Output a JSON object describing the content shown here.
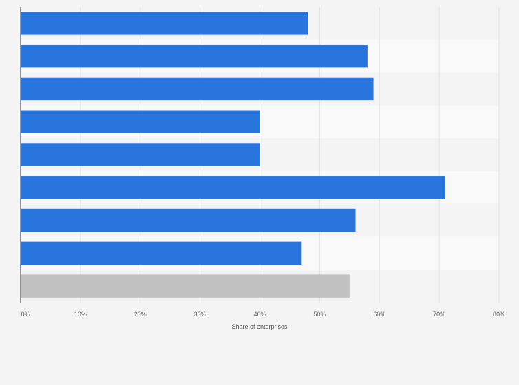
{
  "chart_data": {
    "type": "bar",
    "orientation": "horizontal",
    "categories": [
      "",
      "",
      "",
      "",
      "",
      "",
      "",
      "",
      ""
    ],
    "values": [
      48,
      58,
      59,
      40,
      40,
      71,
      56,
      47,
      55
    ],
    "bar_colors": [
      "#2876dd",
      "#2876dd",
      "#2876dd",
      "#2876dd",
      "#2876dd",
      "#2876dd",
      "#2876dd",
      "#2876dd",
      "#c0c0c0"
    ],
    "xlabel": "Share of enterprises",
    "xlim": [
      0,
      80
    ],
    "xticks": [
      0,
      10,
      20,
      30,
      40,
      50,
      60,
      70,
      80
    ],
    "tick_labels": [
      "0%",
      "10%",
      "20%",
      "30%",
      "40%",
      "50%",
      "60%",
      "70%",
      "80%"
    ],
    "grid": true,
    "colors": {
      "background": "#f4f4f4",
      "band_alt": "#f9f9f9",
      "gridline": "#e3e3e3",
      "axis": "#333333",
      "tick_text": "#666666"
    }
  }
}
